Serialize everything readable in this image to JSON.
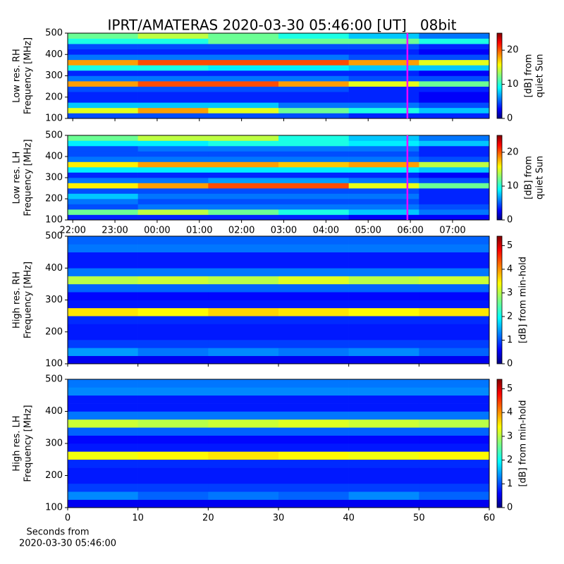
{
  "title": "IPRT/AMATERAS 2020-03-30 05:46:00 [UT]   08bit",
  "chart_data": [
    {
      "type": "heatmap",
      "y_label": [
        "Low res. RH",
        "Frequency [MHz]"
      ],
      "xlim": [
        21.88,
        31.87
      ],
      "xticks": [
        22,
        23,
        24,
        25,
        26,
        27,
        28,
        29,
        30,
        31
      ],
      "show_xtick_labels": false,
      "ylim": [
        100,
        500
      ],
      "yticks": [
        100,
        200,
        300,
        400,
        500
      ],
      "marker_x": 29.93,
      "marker_color": "#ff00ff",
      "colorbar": {
        "label": [
          "[dB] from",
          "quiet Sun"
        ],
        "lim": [
          0,
          25
        ],
        "ticks": [
          0,
          10,
          20
        ]
      },
      "z": [
        [
          5,
          5,
          5,
          5,
          4,
          4
        ],
        [
          15,
          18,
          15,
          12,
          10,
          8
        ],
        [
          8,
          8,
          8,
          6,
          6,
          5
        ],
        [
          4,
          4,
          4,
          4,
          4,
          3
        ],
        [
          4,
          4,
          4,
          4,
          4,
          3
        ],
        [
          5,
          5,
          5,
          5,
          4,
          4
        ],
        [
          18,
          20,
          20,
          18,
          15,
          12
        ],
        [
          6,
          6,
          6,
          6,
          5,
          5
        ],
        [
          4,
          4,
          4,
          4,
          4,
          3
        ],
        [
          10,
          10,
          9,
          9,
          8,
          8
        ],
        [
          18,
          20,
          20,
          20,
          18,
          15
        ],
        [
          6,
          6,
          6,
          6,
          5,
          5
        ],
        [
          4,
          4,
          4,
          4,
          4,
          3
        ],
        [
          5,
          5,
          5,
          5,
          5,
          4
        ],
        [
          10,
          10,
          12,
          12,
          12,
          10
        ],
        [
          12,
          14,
          12,
          10,
          8,
          6
        ]
      ]
    },
    {
      "type": "heatmap",
      "y_label": [
        "Low res. LH",
        "Frequency [MHz]"
      ],
      "xlim": [
        21.88,
        31.87
      ],
      "xticks": [
        {
          "value": 22,
          "label": "22:00"
        },
        {
          "value": 23,
          "label": "23:00"
        },
        {
          "value": 24,
          "label": "00:00"
        },
        {
          "value": 25,
          "label": "01:00"
        },
        {
          "value": 26,
          "label": "02:00"
        },
        {
          "value": 27,
          "label": "03:00"
        },
        {
          "value": 28,
          "label": "04:00"
        },
        {
          "value": 29,
          "label": "05:00"
        },
        {
          "value": 30,
          "label": "06:00"
        },
        {
          "value": 31,
          "label": "07:00"
        }
      ],
      "show_xtick_labels": true,
      "ylim": [
        100,
        500
      ],
      "yticks": [
        100,
        200,
        300,
        400,
        500
      ],
      "marker_x": 29.93,
      "marker_color": "#ff00ff",
      "colorbar": {
        "label": [
          "[dB] from",
          "quiet Sun"
        ],
        "lim": [
          0,
          25
        ],
        "ticks": [
          0,
          10,
          20
        ]
      },
      "z": [
        [
          4,
          4,
          4,
          4,
          3,
          3
        ],
        [
          12,
          14,
          12,
          10,
          8,
          6
        ],
        [
          5,
          6,
          6,
          6,
          6,
          5
        ],
        [
          6,
          5,
          5,
          5,
          5,
          4
        ],
        [
          8,
          6,
          6,
          6,
          6,
          4
        ],
        [
          5,
          5,
          5,
          5,
          5,
          4
        ],
        [
          16,
          18,
          20,
          20,
          15,
          12
        ],
        [
          6,
          6,
          7,
          7,
          6,
          5
        ],
        [
          4,
          4,
          4,
          4,
          4,
          3
        ],
        [
          9,
          9,
          9,
          9,
          9,
          8
        ],
        [
          16,
          18,
          18,
          17,
          18,
          14
        ],
        [
          6,
          6,
          6,
          6,
          6,
          5
        ],
        [
          5,
          5,
          5,
          5,
          5,
          4
        ],
        [
          5,
          6,
          6,
          6,
          6,
          4
        ],
        [
          9,
          9,
          10,
          10,
          9,
          8
        ],
        [
          12,
          14,
          14,
          10,
          8,
          6
        ]
      ]
    },
    {
      "type": "heatmap",
      "y_label": [
        "High res. RH",
        "Frequency [MHz]"
      ],
      "xlim": [
        0,
        60
      ],
      "xticks": [
        0,
        10,
        20,
        30,
        40,
        50,
        60
      ],
      "show_xtick_labels": false,
      "ylim": [
        100,
        500
      ],
      "yticks": [
        100,
        200,
        300,
        400,
        500
      ],
      "colorbar": {
        "label": [
          "[dB] from min-hold"
        ],
        "lim": [
          0,
          5.4
        ],
        "ticks": [
          0,
          1,
          2,
          3,
          4,
          5
        ]
      },
      "z": [
        [
          0.6,
          0.6,
          0.6,
          0.6,
          0.6,
          0.6
        ],
        [
          1.5,
          1.3,
          1.4,
          1.3,
          1.4,
          1.2
        ],
        [
          1.0,
          1.0,
          1.0,
          1.0,
          1.0,
          1.0
        ],
        [
          0.8,
          0.8,
          0.8,
          0.8,
          0.8,
          0.8
        ],
        [
          0.8,
          0.8,
          0.8,
          0.8,
          0.8,
          0.8
        ],
        [
          0.9,
          0.9,
          0.9,
          0.9,
          0.9,
          0.9
        ],
        [
          3.5,
          3.4,
          3.6,
          3.5,
          3.4,
          3.5
        ],
        [
          0.8,
          0.8,
          0.8,
          0.8,
          0.8,
          0.8
        ],
        [
          0.7,
          0.7,
          0.7,
          0.7,
          0.7,
          0.7
        ],
        [
          1.2,
          1.2,
          1.2,
          1.2,
          1.2,
          1.2
        ],
        [
          3.0,
          3.1,
          3.0,
          3.2,
          3.0,
          3.1
        ],
        [
          1.3,
          1.3,
          1.3,
          1.3,
          1.3,
          1.3
        ],
        [
          0.8,
          0.8,
          0.8,
          0.8,
          0.8,
          0.8
        ],
        [
          0.8,
          0.8,
          0.8,
          0.8,
          0.8,
          0.8
        ],
        [
          1.3,
          1.3,
          1.3,
          1.3,
          1.3,
          1.3
        ],
        [
          1.2,
          1.2,
          1.2,
          1.2,
          1.2,
          1.2
        ]
      ]
    },
    {
      "type": "heatmap",
      "y_label": [
        "High res. LH",
        "Frequency [MHz]"
      ],
      "xlim": [
        0,
        60
      ],
      "xticks": [
        0,
        10,
        20,
        30,
        40,
        50,
        60
      ],
      "show_xtick_labels": true,
      "x_label": [
        "Seconds from",
        "2020-03-30 05:46:00"
      ],
      "ylim": [
        100,
        500
      ],
      "yticks": [
        100,
        200,
        300,
        400,
        500
      ],
      "colorbar": {
        "label": [
          "[dB] from min-hold"
        ],
        "lim": [
          0,
          5.4
        ],
        "ticks": [
          0,
          1,
          2,
          3,
          4,
          5
        ]
      },
      "z": [
        [
          0.6,
          0.6,
          0.6,
          0.6,
          0.6,
          0.6
        ],
        [
          1.4,
          1.2,
          1.3,
          1.2,
          1.4,
          1.2
        ],
        [
          1.0,
          1.0,
          1.0,
          1.0,
          1.0,
          1.0
        ],
        [
          0.8,
          0.8,
          0.8,
          0.8,
          0.8,
          0.8
        ],
        [
          0.8,
          0.8,
          0.8,
          0.8,
          0.8,
          0.8
        ],
        [
          0.9,
          0.9,
          0.9,
          0.9,
          0.9,
          0.9
        ],
        [
          3.3,
          3.4,
          3.5,
          3.4,
          3.3,
          3.4
        ],
        [
          0.8,
          0.8,
          0.8,
          0.8,
          0.8,
          0.8
        ],
        [
          0.7,
          0.7,
          0.7,
          0.7,
          0.7,
          0.7
        ],
        [
          1.2,
          1.2,
          1.2,
          1.2,
          1.2,
          1.2
        ],
        [
          3.1,
          3.0,
          3.1,
          3.2,
          3.1,
          3.0
        ],
        [
          1.3,
          1.3,
          1.3,
          1.3,
          1.3,
          1.3
        ],
        [
          0.8,
          0.8,
          0.8,
          0.8,
          0.8,
          0.8
        ],
        [
          0.8,
          0.8,
          0.8,
          0.8,
          0.8,
          0.8
        ],
        [
          1.4,
          1.4,
          1.4,
          1.4,
          1.4,
          1.4
        ],
        [
          1.3,
          1.3,
          1.3,
          1.3,
          1.3,
          1.3
        ]
      ]
    }
  ]
}
